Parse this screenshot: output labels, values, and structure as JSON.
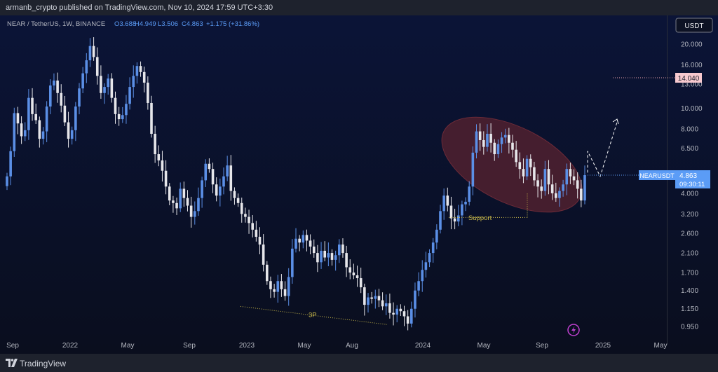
{
  "publisher": "armanb_crypto published on TradingView.com, Nov 10, 2024 17:59 UTC+3:30",
  "brand": "TradingView",
  "colors": {
    "bg_top": "#0b1437",
    "bg_bottom": "#0a0e1e",
    "up": "#5b8fe6",
    "down": "#e6e6ea",
    "ellipse": "#5a2330",
    "ellipse_stroke": "#6b2a38",
    "support": "#c8b84a",
    "price_badge": "#5b9cf6",
    "target_badge": "#f7c9cf"
  },
  "chart_data": {
    "type": "candlestick",
    "symbol": "NEAR / TetherUS, 1W, BINANCE",
    "ohlc_header": {
      "O": "O3.688",
      "H": "H4.949",
      "L": "L3.506",
      "C": "C4.863",
      "chg": "+1.175 (+31.86%)"
    },
    "currency": "USDT",
    "y_scale": "log",
    "ylim": [
      0.85,
      26
    ],
    "y_ticks": [
      "20.000",
      "16.000",
      "13.000",
      "10.000",
      "8.000",
      "6.500",
      "4.000",
      "3.200",
      "2.600",
      "2.100",
      "1.700",
      "1.400",
      "1.150",
      "0.950"
    ],
    "x_ticks": [
      "Sep",
      "2022",
      "May",
      "Sep",
      "2023",
      "May",
      "Aug",
      "2024",
      "May",
      "Sep",
      "2025",
      "May"
    ],
    "symbol_badge": "NEARUSDT",
    "last_price": "4.863",
    "countdown": "09:30:11",
    "target_price": "14.040",
    "annotations": {
      "support": "Support",
      "pattern": "3P"
    },
    "closes": [
      4.8,
      6.3,
      9.5,
      8.5,
      7.4,
      7.9,
      11.2,
      9.4,
      8.8,
      7.2,
      7.8,
      10.2,
      12.8,
      13.5,
      11.8,
      10.3,
      8.6,
      7.2,
      7.9,
      10.2,
      12.4,
      14.6,
      16.8,
      19.6,
      17.4,
      14.2,
      11.8,
      12.6,
      13.8,
      11.2,
      9.4,
      8.9,
      9.3,
      10.5,
      12.6,
      14.2,
      15.8,
      14.8,
      13.2,
      10.6,
      7.6,
      6.1,
      5.7,
      5.1,
      4.3,
      3.7,
      3.6,
      3.4,
      4.2,
      3.8,
      3.5,
      3.1,
      3.3,
      3.8,
      4.6,
      5.5,
      5.2,
      4.4,
      3.9,
      4.3,
      4.8,
      5.4,
      4.1,
      3.8,
      3.6,
      3.2,
      3.1,
      2.9,
      2.7,
      2.5,
      2.3,
      1.85,
      1.55,
      1.42,
      1.38,
      1.55,
      1.42,
      1.32,
      1.62,
      2.2,
      2.45,
      2.35,
      2.55,
      2.4,
      2.25,
      2.1,
      1.9,
      2.15,
      2.0,
      2.1,
      1.95,
      2.05,
      2.3,
      2.1,
      1.8,
      1.7,
      1.65,
      1.6,
      1.45,
      1.2,
      1.3,
      1.28,
      1.32,
      1.26,
      1.18,
      1.22,
      1.1,
      1.08,
      1.15,
      1.12,
      1.06,
      0.98,
      1.15,
      1.4,
      1.55,
      1.75,
      1.9,
      2.1,
      2.35,
      2.7,
      3.3,
      3.9,
      3.5,
      3.05,
      2.95,
      3.15,
      3.55,
      3.65,
      4.3,
      6.2,
      7.8,
      7.1,
      6.6,
      7.6,
      6.9,
      6.1,
      6.8,
      7.3,
      7.5,
      6.9,
      6.4,
      5.6,
      5.2,
      4.8,
      5.8,
      5.3,
      4.6,
      4.3,
      4.1,
      5.2,
      4.4,
      4.0,
      3.8,
      4.1,
      4.4,
      5.2,
      4.8,
      4.6,
      4.2,
      3.7,
      4.863
    ],
    "projection": [
      [
        5.2,
        6.3
      ],
      [
        5.7,
        4.8
      ],
      [
        8.7,
        0
      ]
    ]
  }
}
